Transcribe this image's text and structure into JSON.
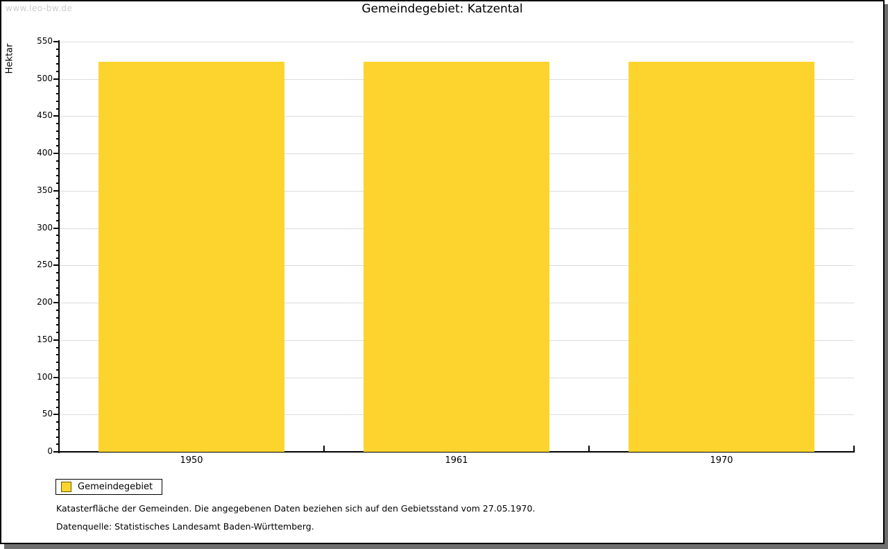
{
  "watermark": "www.leo-bw.de",
  "title": "Gemeindegebiet: Katzental",
  "chart_data": {
    "type": "bar",
    "title": "Gemeindegebiet: Katzental",
    "ylabel": "Hektar",
    "xlabel": "",
    "categories": [
      "1950",
      "1961",
      "1970"
    ],
    "series": [
      {
        "name": "Gemeindegebiet",
        "values": [
          523,
          523,
          523
        ]
      }
    ],
    "ylim": [
      0,
      550
    ],
    "ytick_interval": 50,
    "minor_tick_interval": 10,
    "grid": true,
    "legend_position": "bottom-left",
    "bar_color": "#fcd42d"
  },
  "legend": {
    "label": "Gemeindegebiet"
  },
  "footnotes": [
    "Katasterfläche der Gemeinden. Die angegebenen Daten beziehen sich auf den Gebietsstand vom 27.05.1970.",
    "Datenquelle: Statistisches Landesamt Baden-Württemberg."
  ],
  "colors": {
    "bar": "#fcd42d",
    "grid": "#dcdcdc",
    "axis": "#000000",
    "frame_border": "#000000",
    "frame_shadow": "#6e6e6e",
    "watermark_text": "#cccccc"
  }
}
